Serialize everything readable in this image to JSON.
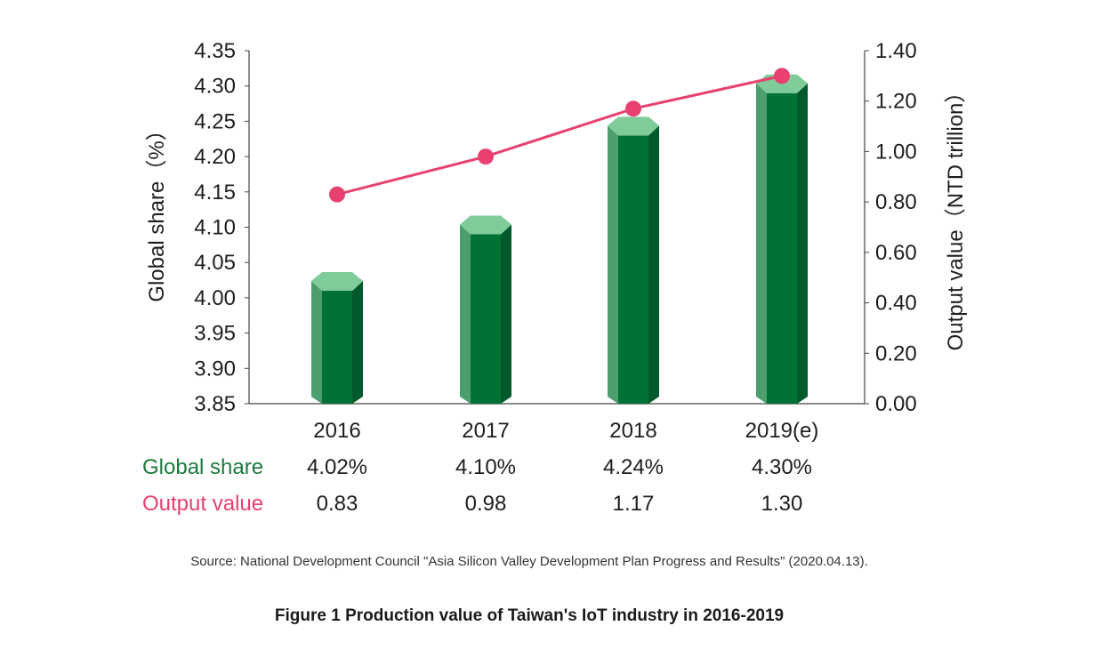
{
  "chart_data": {
    "type": "bar",
    "categories": [
      "2016",
      "2017",
      "2018",
      "2019(e)"
    ],
    "series": [
      {
        "name": "Global share",
        "values": [
          4.02,
          4.1,
          4.24,
          4.3
        ],
        "axis": "left",
        "type": "bar"
      },
      {
        "name": "Output value",
        "values": [
          0.83,
          0.98,
          1.17,
          1.3
        ],
        "axis": "right",
        "type": "line"
      }
    ],
    "ylabel_left": "Global share（%）",
    "ylabel_right": "Output value（NTD trillion）",
    "ylim_left": [
      3.85,
      4.35
    ],
    "ylim_right": [
      0.0,
      1.4
    ],
    "yticks_left": [
      "4.35",
      "4.30",
      "4.25",
      "4.20",
      "4.15",
      "4.10",
      "4.05",
      "4.00",
      "3.95",
      "3.90",
      "3.85"
    ],
    "yticks_right": [
      "1.40",
      "1.20",
      "1.00",
      "0.80",
      "0.60",
      "0.40",
      "0.20",
      "0.00"
    ],
    "table": {
      "share_label": "Global share",
      "output_label": "Output value",
      "share_values": [
        "4.02%",
        "4.10%",
        "4.24%",
        "4.30%"
      ],
      "output_values": [
        "0.83",
        "0.98",
        "1.17",
        "1.30"
      ]
    },
    "grid": false,
    "colors": {
      "bar_front": "#007236",
      "bar_left": "#4c9e6e",
      "bar_right": "#005a2b",
      "bar_top": "#7fcb99",
      "line": "#e8406f",
      "axis": "#444444",
      "share_label": "#1b7a3e",
      "output_label": "#e8406f"
    }
  },
  "source": "Source: National Development Council \"Asia Silicon Valley Development Plan Progress and Results\" (2020.04.13).",
  "caption": "Figure 1 Production value of Taiwan's IoT industry in 2016-2019"
}
